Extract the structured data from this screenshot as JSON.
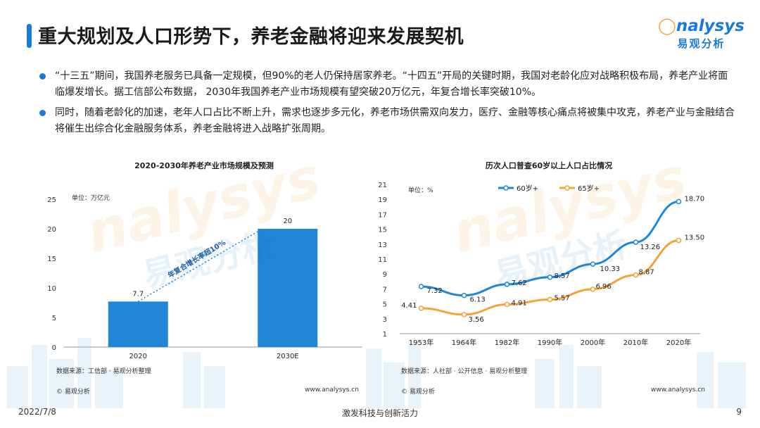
{
  "page": {
    "title": "重大规划及人口形势下，养老金融将迎来发展契机",
    "logo_en": "nalysys",
    "logo_cn": "易观分析",
    "bullets": [
      "“十三五”期间，我国养老服务已具备一定规模，但90%的老人仍保持居家养老。“十四五”开局的关键时期，我国对老龄化应对战略积极布局，养老产业将面临爆发增长。据工信部公布数据， 2030年我国养老产业市场规模有望突破20万亿元，年复合增长率突破10%。",
      "同时，随着老龄化的加速，老年人口占比不断上升，需求也逐步多元化，养老市场供需双向发力，医疗、金融等核心痛点将被集中攻克，养老产业与金融结合将催生出综合化金融服务体系，养老金融将进入战略扩张周期。"
    ],
    "footer": {
      "date": "2022/7/8",
      "slogan": "激发科技与创新活力",
      "page_number": "9"
    },
    "colors": {
      "accent": "#1a7bd6",
      "orange": "#f2a33a"
    }
  },
  "chart_data": [
    {
      "type": "bar",
      "title": "2020-2030年养老产业市场规模及预测",
      "unit_label": "单位：万亿元",
      "categories": [
        "2020",
        "2030E"
      ],
      "values": [
        7.7,
        20
      ],
      "data_labels": [
        "7.7",
        "20"
      ],
      "ylim": [
        0,
        25
      ],
      "yticks": [
        "0",
        "5",
        "10",
        "15",
        "20",
        "25"
      ],
      "annotation": "年复合增长率超10%",
      "source": "数据来源：工信部 · 易观分析整理",
      "copyright": "© 易观分析",
      "url": "www.analysys.cn",
      "colors": {
        "bar": "#1f86d8",
        "axis": "#999999"
      }
    },
    {
      "type": "line",
      "title": "历次人口普查60岁以上人口占比情况",
      "unit_label": "单位：%",
      "categories": [
        "1953年",
        "1964年",
        "1982年",
        "1990年",
        "2000年",
        "2010年",
        "2020年"
      ],
      "ylim": [
        1,
        21
      ],
      "yticks": [
        "1",
        "3",
        "5",
        "7",
        "9",
        "11",
        "13",
        "15",
        "17",
        "19",
        "21"
      ],
      "series": [
        {
          "name": "60岁+",
          "values": [
            7.32,
            6.13,
            7.62,
            8.57,
            10.33,
            13.26,
            18.7
          ],
          "labels": [
            "7.32",
            "6.13",
            "7.62",
            "8.57",
            "10.33",
            "13.26",
            "18.70"
          ],
          "color": "#1f86d8"
        },
        {
          "name": "65岁+",
          "values": [
            4.41,
            3.56,
            4.91,
            5.57,
            6.96,
            8.87,
            13.5
          ],
          "labels": [
            "4.41",
            "3.56",
            "4.91",
            "5.57",
            "6.96",
            "8.87",
            "13.50"
          ],
          "color": "#f2a33a"
        }
      ],
      "source": "数据来源：人社部 · 公开信息 · 易观分析整理",
      "copyright": "© 易观分析",
      "url": "www.analysys.cn"
    }
  ]
}
